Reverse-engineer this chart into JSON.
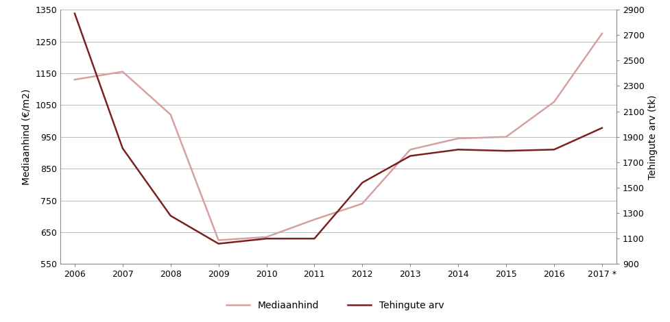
{
  "years": [
    "2006",
    "2007",
    "2008",
    "2009",
    "2010",
    "2011",
    "2012",
    "2013",
    "2014",
    "2015",
    "2016",
    "2017 *"
  ],
  "mediaanhind": [
    1130,
    1155,
    1020,
    625,
    635,
    690,
    740,
    910,
    945,
    950,
    1060,
    1275
  ],
  "tehingute_arv": [
    2870,
    1810,
    1280,
    1060,
    1100,
    1100,
    1540,
    1750,
    1800,
    1790,
    1800,
    1970
  ],
  "left_ylim": [
    550,
    1350
  ],
  "right_ylim": [
    900,
    2900
  ],
  "left_yticks": [
    550,
    650,
    750,
    850,
    950,
    1050,
    1150,
    1250,
    1350
  ],
  "right_yticks": [
    900,
    1100,
    1300,
    1500,
    1700,
    1900,
    2100,
    2300,
    2500,
    2700,
    2900
  ],
  "ylabel_left": "Mediaanhind (€/m2)",
  "ylabel_right": "Tehingute arv (tk)",
  "legend_mediaanhind": "Mediaanhind",
  "legend_tehingute": "Tehingute arv",
  "color_mediaanhind": "#d4a0a0",
  "color_tehingute": "#7b2020",
  "linewidth": 1.8,
  "background_color": "#ffffff",
  "grid_color": "#b0b0b0"
}
